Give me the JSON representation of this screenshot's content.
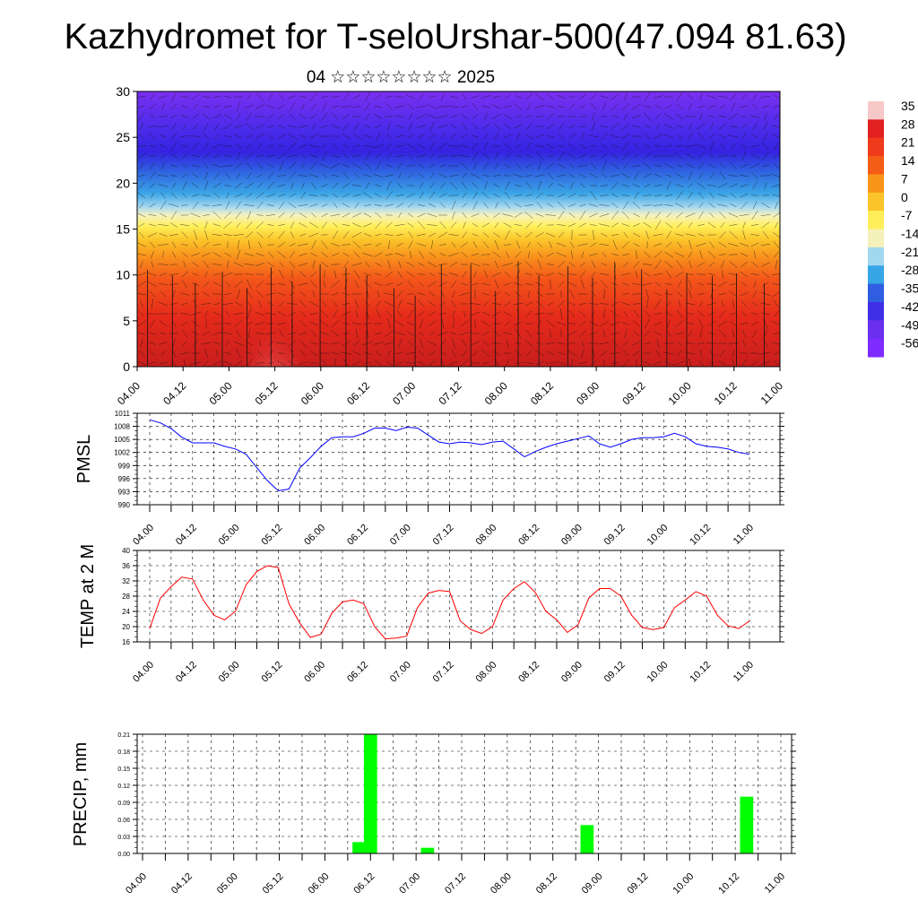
{
  "title": "Kazhydromet for T-seloUrshar-500(47.094 81.63)",
  "subtitle": "04 ☆☆☆☆☆☆☆☆ 2025",
  "x_ticks": [
    "04.00",
    "04.12",
    "05.00",
    "05.12",
    "06.00",
    "06.12",
    "07.00",
    "07.12",
    "08.00",
    "08.12",
    "09.00",
    "09.12",
    "10.00",
    "10.12",
    "11.00"
  ],
  "colors": {
    "pmsl_line": "#0000ff",
    "temp_line": "#ff0000",
    "precip_bar": "#00ff00"
  },
  "chart_data": [
    {
      "type": "heatmap",
      "title": "",
      "xlabel": "",
      "ylabel": "",
      "x_range": [
        "04.00",
        "11.00"
      ],
      "ylim": [
        0,
        30
      ],
      "y_ticks": [
        0,
        5,
        10,
        15,
        20,
        25,
        30
      ],
      "colorbar": {
        "labels": [
          "35",
          "28",
          "21",
          "14",
          "7",
          "0",
          "-7",
          "-14",
          "-21",
          "-28",
          "-35",
          "-42",
          "-49",
          "-56"
        ],
        "colors": [
          "#f7c8c8",
          "#e22020",
          "#ef3a1c",
          "#f35d16",
          "#f9941a",
          "#fbc52a",
          "#ffee5a",
          "#f5f1bb",
          "#a2d7f0",
          "#36a6e6",
          "#2f5fe0",
          "#3f2fe6",
          "#6a2fef",
          "#7e2cff"
        ]
      },
      "overlay": "wind vectors"
    },
    {
      "type": "line",
      "ylabel": "PMSL",
      "ylim": [
        990,
        1011
      ],
      "y_ticks": [
        990,
        993,
        996,
        999,
        1002,
        1005,
        1008,
        1011
      ],
      "grid": true,
      "x": [
        0,
        3,
        6,
        9,
        12,
        15,
        18,
        21,
        24,
        27,
        30,
        33,
        36,
        39,
        42,
        45,
        48,
        51,
        54,
        57,
        60,
        63,
        66,
        69,
        72,
        75,
        78,
        81,
        84,
        87,
        90,
        93,
        96,
        99,
        102,
        105,
        108,
        111,
        114,
        117,
        120,
        123,
        126,
        129,
        132,
        135,
        138,
        141,
        144,
        147,
        150,
        153,
        156,
        159,
        162,
        165,
        168
      ],
      "series": [
        {
          "values": [
            1009.5,
            1008.8,
            1007.5,
            1005.5,
            1004.2,
            1004.2,
            1004.2,
            1003.4,
            1002.8,
            1001.6,
            998.5,
            995.5,
            993.2,
            993.6,
            998.4,
            1000.8,
            1003.4,
            1005.4,
            1005.6,
            1005.6,
            1006.4,
            1007.6,
            1007.6,
            1007.0,
            1007.8,
            1007.6,
            1006.0,
            1004.4,
            1004.0,
            1004.4,
            1004.2,
            1003.8,
            1004.4,
            1004.6,
            1002.8,
            1001.0,
            1002.2,
            1003.2,
            1004.0,
            1004.6,
            1005.2,
            1005.8,
            1004.0,
            1003.2,
            1004.0,
            1005.0,
            1005.4,
            1005.4,
            1005.6,
            1006.4,
            1005.6,
            1004.0,
            1003.4,
            1003.2,
            1002.8,
            1002.0,
            1001.6
          ]
        }
      ]
    },
    {
      "type": "line",
      "ylabel": "TEMP at 2 M",
      "ylim": [
        16,
        40
      ],
      "y_ticks": [
        16,
        20,
        24,
        28,
        32,
        36,
        40
      ],
      "grid": true,
      "x": [
        0,
        3,
        6,
        9,
        12,
        15,
        18,
        21,
        24,
        27,
        30,
        33,
        36,
        39,
        42,
        45,
        48,
        51,
        54,
        57,
        60,
        63,
        66,
        69,
        72,
        75,
        78,
        81,
        84,
        87,
        90,
        93,
        96,
        99,
        102,
        105,
        108,
        111,
        114,
        117,
        120,
        123,
        126,
        129,
        132,
        135,
        138,
        141,
        144,
        147,
        150,
        153,
        156,
        159,
        162,
        165,
        168
      ],
      "series": [
        {
          "values": [
            19.5,
            27.5,
            30.5,
            33.0,
            32.5,
            27.0,
            23.0,
            21.8,
            24.0,
            31.0,
            34.5,
            36.0,
            35.5,
            26.0,
            21.0,
            17.2,
            18.0,
            23.5,
            26.5,
            27.0,
            26.0,
            20.0,
            16.8,
            17.0,
            17.5,
            25.0,
            28.8,
            29.5,
            29.2,
            21.5,
            19.2,
            18.2,
            20.0,
            27.0,
            30.0,
            31.8,
            29.0,
            24.0,
            21.8,
            18.5,
            20.5,
            27.5,
            30.0,
            30.0,
            28.0,
            23.0,
            19.8,
            19.2,
            19.8,
            25.0,
            27.0,
            29.2,
            28.0,
            23.0,
            20.2,
            19.5,
            21.5
          ]
        }
      ]
    },
    {
      "type": "bar",
      "ylabel": "PRECIP, mm",
      "ylim": [
        0,
        0.21
      ],
      "y_ticks": [
        "0.00",
        "0.03",
        "0.06",
        "0.09",
        "0.12",
        "0.15",
        "0.18",
        "0.21"
      ],
      "grid": true,
      "x": [
        57,
        60,
        75,
        117,
        159
      ],
      "values": [
        0.02,
        0.21,
        0.01,
        0.05,
        0.1
      ]
    }
  ]
}
